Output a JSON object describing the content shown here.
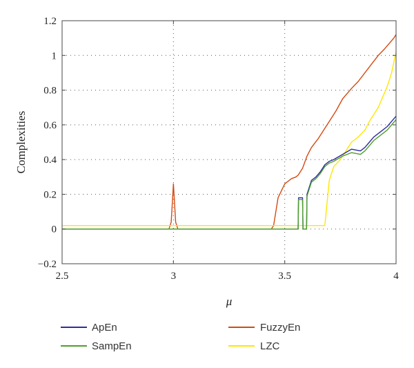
{
  "chart_data": {
    "type": "line",
    "xlabel": "μ",
    "ylabel": "Complexities",
    "xlim": [
      2.5,
      4.0
    ],
    "ylim": [
      -0.2,
      1.2
    ],
    "xticks": [
      "2.5",
      "3",
      "3.5",
      "4"
    ],
    "yticks": [
      "−0.2",
      "0",
      "0.2",
      "0.4",
      "0.6",
      "0.8",
      "1",
      "1.2"
    ],
    "grid": "dotted",
    "legend_position": "bottom",
    "series": [
      {
        "name": "ApEn",
        "color": "#2b2b9e",
        "points": [
          [
            2.5,
            0.0
          ],
          [
            3.56,
            0.0
          ],
          [
            3.562,
            0.18
          ],
          [
            3.58,
            0.18
          ],
          [
            3.582,
            0.0
          ],
          [
            3.598,
            0.0
          ],
          [
            3.6,
            0.2
          ],
          [
            3.62,
            0.28
          ],
          [
            3.64,
            0.3
          ],
          [
            3.66,
            0.33
          ],
          [
            3.68,
            0.37
          ],
          [
            3.7,
            0.39
          ],
          [
            3.72,
            0.4
          ],
          [
            3.76,
            0.43
          ],
          [
            3.8,
            0.46
          ],
          [
            3.84,
            0.45
          ],
          [
            3.86,
            0.47
          ],
          [
            3.88,
            0.5
          ],
          [
            3.9,
            0.53
          ],
          [
            3.92,
            0.55
          ],
          [
            3.94,
            0.57
          ],
          [
            3.96,
            0.59
          ],
          [
            3.98,
            0.62
          ],
          [
            4.0,
            0.65
          ]
        ]
      },
      {
        "name": "SampEn",
        "color": "#4c9e2a",
        "points": [
          [
            2.5,
            0.0
          ],
          [
            3.56,
            0.0
          ],
          [
            3.562,
            0.17
          ],
          [
            3.58,
            0.17
          ],
          [
            3.582,
            0.0
          ],
          [
            3.598,
            0.0
          ],
          [
            3.6,
            0.19
          ],
          [
            3.62,
            0.27
          ],
          [
            3.64,
            0.29
          ],
          [
            3.66,
            0.32
          ],
          [
            3.68,
            0.36
          ],
          [
            3.7,
            0.38
          ],
          [
            3.72,
            0.39
          ],
          [
            3.76,
            0.42
          ],
          [
            3.8,
            0.44
          ],
          [
            3.84,
            0.43
          ],
          [
            3.86,
            0.45
          ],
          [
            3.88,
            0.48
          ],
          [
            3.9,
            0.51
          ],
          [
            3.92,
            0.53
          ],
          [
            3.94,
            0.55
          ],
          [
            3.96,
            0.57
          ],
          [
            3.98,
            0.6
          ],
          [
            4.0,
            0.63
          ]
        ]
      },
      {
        "name": "FuzzyEn",
        "color": "#d24a12",
        "points": [
          [
            2.5,
            0.0
          ],
          [
            2.98,
            0.0
          ],
          [
            2.99,
            0.04
          ],
          [
            2.995,
            0.15
          ],
          [
            3.0,
            0.26
          ],
          [
            3.005,
            0.15
          ],
          [
            3.01,
            0.04
          ],
          [
            3.02,
            0.0
          ],
          [
            3.44,
            0.0
          ],
          [
            3.45,
            0.02
          ],
          [
            3.47,
            0.18
          ],
          [
            3.5,
            0.26
          ],
          [
            3.53,
            0.29
          ],
          [
            3.55,
            0.3
          ],
          [
            3.56,
            0.31
          ],
          [
            3.58,
            0.35
          ],
          [
            3.6,
            0.42
          ],
          [
            3.62,
            0.47
          ],
          [
            3.65,
            0.52
          ],
          [
            3.68,
            0.58
          ],
          [
            3.7,
            0.62
          ],
          [
            3.73,
            0.68
          ],
          [
            3.76,
            0.75
          ],
          [
            3.8,
            0.81
          ],
          [
            3.83,
            0.85
          ],
          [
            3.86,
            0.9
          ],
          [
            3.89,
            0.95
          ],
          [
            3.92,
            1.0
          ],
          [
            3.95,
            1.04
          ],
          [
            3.97,
            1.07
          ],
          [
            3.99,
            1.1
          ],
          [
            4.0,
            1.12
          ]
        ]
      },
      {
        "name": "LZC",
        "color": "#ffe600",
        "points": [
          [
            2.5,
            0.02
          ],
          [
            3.67,
            0.02
          ],
          [
            3.68,
            0.02
          ],
          [
            3.7,
            0.28
          ],
          [
            3.72,
            0.36
          ],
          [
            3.75,
            0.4
          ],
          [
            3.78,
            0.46
          ],
          [
            3.8,
            0.5
          ],
          [
            3.83,
            0.53
          ],
          [
            3.86,
            0.57
          ],
          [
            3.88,
            0.62
          ],
          [
            3.9,
            0.66
          ],
          [
            3.92,
            0.7
          ],
          [
            3.94,
            0.76
          ],
          [
            3.96,
            0.82
          ],
          [
            3.98,
            0.9
          ],
          [
            4.0,
            1.02
          ]
        ]
      }
    ]
  }
}
